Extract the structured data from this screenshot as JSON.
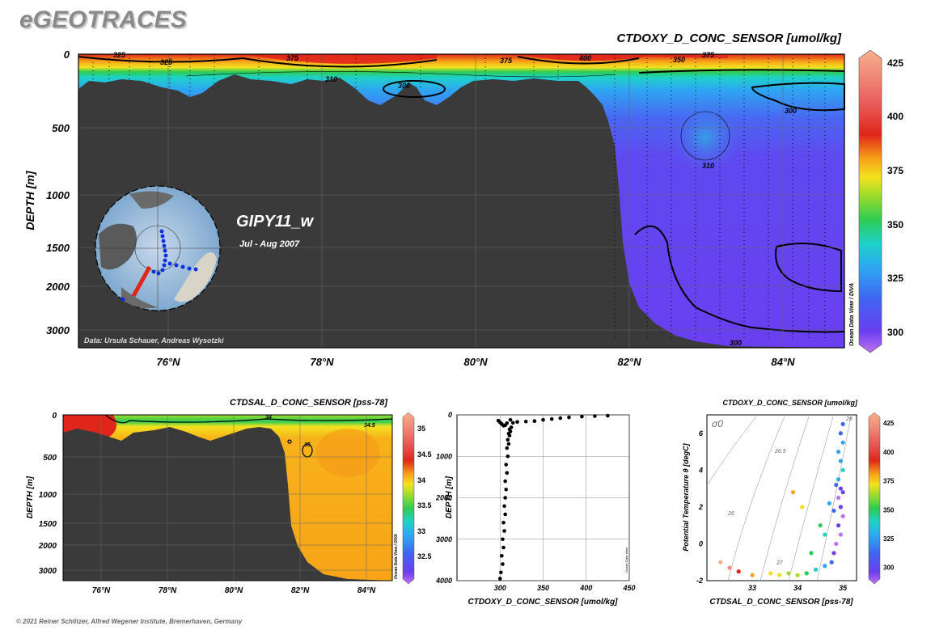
{
  "header": {
    "brand": "eGEOTRACES"
  },
  "footer": {
    "copyright": "© 2021 Reiner Schlitzer, Alfred Wegener Institute, Bremerhaven, Germany"
  },
  "colors": {
    "terrain": "#3a3a3a",
    "ramp": [
      "#c070f0",
      "#6a3ff0",
      "#3f66f2",
      "#2ea7f2",
      "#1ed1c9",
      "#2ecc52",
      "#9fdc2b",
      "#f2e21e",
      "#f7a418",
      "#e0261a",
      "#e85a5a",
      "#f08c7a",
      "#f8b08a"
    ]
  },
  "main_section": {
    "title": "CTDOXY_D_CONC_SENSOR [umol/kg]",
    "ylabel": "DEPTH [m]",
    "y_ticks": [
      "0",
      "500",
      "1000",
      "1500",
      "2000",
      "3000"
    ],
    "x_ticks": [
      "76°N",
      "78°N",
      "80°N",
      "82°N",
      "84°N"
    ],
    "cruise": "GIPY11_w",
    "period": "Jul - Aug 2007",
    "credit": "Data: Ursula Schauer, Andreas Wysotzki",
    "watermark": "Ocean Data View / DIVA",
    "contour_labels": [
      "325",
      "325",
      "375",
      "375",
      "400",
      "350",
      "375",
      "310",
      "300",
      "300",
      "310",
      "300"
    ],
    "colorbar_ticks": [
      "425",
      "400",
      "375",
      "350",
      "325",
      "300"
    ]
  },
  "sal_section": {
    "title": "CTDSAL_D_CONC_SENSOR [pss-78]",
    "ylabel": "DEPTH [m]",
    "y_ticks": [
      "0",
      "500",
      "1000",
      "1500",
      "2000",
      "3000"
    ],
    "x_ticks": [
      "76°N",
      "78°N",
      "80°N",
      "82°N",
      "84°N"
    ],
    "contour_labels": [
      "34",
      "34.5",
      "35"
    ],
    "watermark": "Ocean Data View / DIVA",
    "colorbar_ticks": [
      "35",
      "34.5",
      "34",
      "33.5",
      "33",
      "32.5"
    ]
  },
  "chart_data": [
    {
      "type": "heatmap",
      "title": "CTDOXY_D_CONC_SENSOR [umol/kg]",
      "xlabel": "",
      "ylabel": "DEPTH [m]",
      "x_ticks": [
        "76°N",
        "78°N",
        "80°N",
        "82°N",
        "84°N"
      ],
      "y_ticks": [
        0,
        500,
        1000,
        1500,
        2000,
        3000
      ],
      "colorbar": {
        "ticks": [
          300,
          325,
          350,
          375,
          400,
          425
        ],
        "range": [
          290,
          430
        ]
      },
      "note": "Section GIPY11_w, Jul - Aug 2007"
    },
    {
      "type": "heatmap",
      "title": "CTDSAL_D_CONC_SENSOR [pss-78]",
      "ylabel": "DEPTH [m]",
      "x_ticks": [
        "76°N",
        "78°N",
        "80°N",
        "82°N",
        "84°N"
      ],
      "y_ticks": [
        0,
        500,
        1000,
        1500,
        2000,
        3000
      ],
      "colorbar": {
        "ticks": [
          32.5,
          33,
          33.5,
          34,
          34.5,
          35
        ],
        "range": [
          32.2,
          35.3
        ]
      }
    },
    {
      "type": "scatter",
      "title": "",
      "xlabel": "CTDOXY_D_CONC_SENSOR [umol/kg]",
      "ylabel": "DEPTH [m]",
      "xlim": [
        250,
        450
      ],
      "ylim": [
        4000,
        0
      ],
      "x_ticks": [
        300,
        350,
        400,
        450
      ],
      "y_ticks": [
        0,
        1000,
        2000,
        3000,
        4000
      ],
      "watermark": "Ocean Data View",
      "points": [
        [
          300,
          3950
        ],
        [
          301,
          3800
        ],
        [
          303,
          3600
        ],
        [
          302,
          3400
        ],
        [
          304,
          3200
        ],
        [
          303,
          3000
        ],
        [
          305,
          2800
        ],
        [
          304,
          2600
        ],
        [
          306,
          2400
        ],
        [
          305,
          2200
        ],
        [
          306,
          2000
        ],
        [
          307,
          1800
        ],
        [
          306,
          1600
        ],
        [
          308,
          1400
        ],
        [
          307,
          1200
        ],
        [
          309,
          1000
        ],
        [
          308,
          800
        ],
        [
          310,
          700
        ],
        [
          309,
          600
        ],
        [
          311,
          500
        ],
        [
          310,
          450
        ],
        [
          312,
          400
        ],
        [
          311,
          350
        ],
        [
          313,
          300
        ],
        [
          306,
          250
        ],
        [
          302,
          220
        ],
        [
          308,
          200
        ],
        [
          315,
          190
        ],
        [
          320,
          170
        ],
        [
          330,
          160
        ],
        [
          340,
          150
        ],
        [
          350,
          120
        ],
        [
          360,
          100
        ],
        [
          370,
          80
        ],
        [
          380,
          60
        ],
        [
          395,
          40
        ],
        [
          410,
          30
        ],
        [
          425,
          20
        ],
        [
          300,
          180
        ],
        [
          304,
          260
        ],
        [
          312,
          120
        ],
        [
          298,
          140
        ]
      ]
    },
    {
      "type": "scatter",
      "title": "CTDOXY_D_CONC_SENSOR [umol/kg]",
      "xlabel": "CTDSAL_D_CONC_SENSOR [pss-78]",
      "ylabel": "Potential Temperature θ [degC]",
      "xlim": [
        32,
        35.3
      ],
      "ylim": [
        -2,
        7
      ],
      "x_ticks": [
        33,
        34,
        35
      ],
      "y_ticks": [
        -2,
        0,
        2,
        4,
        6
      ],
      "isopycnal_labels": [
        "σ0",
        "26",
        "26.5",
        "27",
        "28"
      ],
      "colorbar": {
        "ticks": [
          300,
          325,
          350,
          375,
          400,
          425
        ],
        "range": [
          290,
          430
        ]
      },
      "points": [
        [
          35.0,
          6.5,
          320
        ],
        [
          34.95,
          6.0,
          322
        ],
        [
          35.0,
          5.5,
          325
        ],
        [
          34.9,
          5.0,
          330
        ],
        [
          34.95,
          4.5,
          332
        ],
        [
          35.0,
          4.0,
          335
        ],
        [
          34.9,
          3.5,
          330
        ],
        [
          34.95,
          3.0,
          310
        ],
        [
          35.0,
          2.8,
          305
        ],
        [
          34.9,
          2.5,
          300
        ],
        [
          34.95,
          2.0,
          305
        ],
        [
          35.0,
          1.5,
          300
        ],
        [
          34.9,
          1.0,
          302
        ],
        [
          34.95,
          0.5,
          298
        ],
        [
          34.85,
          0.0,
          300
        ],
        [
          34.8,
          -0.5,
          305
        ],
        [
          34.75,
          -1.0,
          320
        ],
        [
          34.6,
          -1.2,
          330
        ],
        [
          34.4,
          -1.4,
          340
        ],
        [
          34.2,
          -1.6,
          350
        ],
        [
          34.0,
          -1.7,
          360
        ],
        [
          33.8,
          -1.6,
          365
        ],
        [
          33.6,
          -1.7,
          370
        ],
        [
          33.4,
          -1.6,
          375
        ],
        [
          33.0,
          -1.7,
          380
        ],
        [
          32.7,
          -1.5,
          395
        ],
        [
          32.5,
          -1.3,
          410
        ],
        [
          32.3,
          -1.0,
          420
        ],
        [
          33.9,
          2.8,
          380
        ],
        [
          34.1,
          2.0,
          370
        ],
        [
          34.5,
          1.0,
          345
        ],
        [
          34.6,
          0.5,
          335
        ],
        [
          34.3,
          -0.5,
          352
        ],
        [
          34.7,
          2.2,
          325
        ],
        [
          34.8,
          1.8,
          318
        ],
        [
          34.85,
          3.2,
          312
        ]
      ]
    }
  ]
}
